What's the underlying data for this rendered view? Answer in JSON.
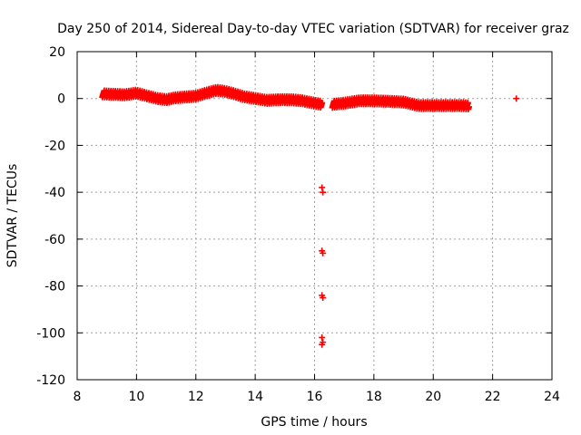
{
  "chart_data": {
    "type": "scatter",
    "title": "Day 250 of 2014, Sidereal Day-to-day VTEC variation (SDTVAR) for receiver graz",
    "xlabel": "GPS time / hours",
    "ylabel": "SDTVAR / TECUs",
    "xlim": [
      8,
      24
    ],
    "ylim": [
      -120,
      20
    ],
    "x_ticks": [
      8,
      10,
      12,
      14,
      16,
      18,
      20,
      22,
      24
    ],
    "y_ticks": [
      -120,
      -100,
      -80,
      -60,
      -40,
      -20,
      0,
      20
    ],
    "x_tick_labels": [
      "8",
      "10",
      "12",
      "14",
      "16",
      "18",
      "20",
      "22",
      "24"
    ],
    "y_tick_labels": [
      "-120",
      "-100",
      "-80",
      "-60",
      "-40",
      "-20",
      "0",
      "20"
    ],
    "grid": true,
    "marker": "plus",
    "color": "#ff0000",
    "series": [
      {
        "name": "SDTVAR",
        "trend": [
          {
            "x": 8.85,
            "y": 2.0
          },
          {
            "x": 9.2,
            "y": 1.8
          },
          {
            "x": 9.6,
            "y": 1.6
          },
          {
            "x": 10.0,
            "y": 2.3
          },
          {
            "x": 10.3,
            "y": 1.3
          },
          {
            "x": 10.7,
            "y": 0.0
          },
          {
            "x": 11.0,
            "y": -0.5
          },
          {
            "x": 11.3,
            "y": 0.3
          },
          {
            "x": 11.6,
            "y": 0.6
          },
          {
            "x": 12.0,
            "y": 1.0
          },
          {
            "x": 12.4,
            "y": 2.5
          },
          {
            "x": 12.7,
            "y": 3.5
          },
          {
            "x": 13.0,
            "y": 3.0
          },
          {
            "x": 13.3,
            "y": 2.0
          },
          {
            "x": 13.6,
            "y": 0.8
          },
          {
            "x": 14.0,
            "y": 0.0
          },
          {
            "x": 14.4,
            "y": -0.8
          },
          {
            "x": 14.8,
            "y": -0.5
          },
          {
            "x": 15.2,
            "y": -0.5
          },
          {
            "x": 15.6,
            "y": -1.0
          },
          {
            "x": 16.0,
            "y": -2.0
          },
          {
            "x": 16.25,
            "y": -2.5
          }
        ],
        "trend2": [
          {
            "x": 16.6,
            "y": -2.5
          },
          {
            "x": 17.0,
            "y": -2.0
          },
          {
            "x": 17.5,
            "y": -1.0
          },
          {
            "x": 18.0,
            "y": -1.0
          },
          {
            "x": 18.5,
            "y": -1.2
          },
          {
            "x": 19.0,
            "y": -1.5
          },
          {
            "x": 19.5,
            "y": -3.0
          },
          {
            "x": 20.0,
            "y": -3.0
          },
          {
            "x": 20.5,
            "y": -3.0
          },
          {
            "x": 21.0,
            "y": -3.0
          },
          {
            "x": 21.2,
            "y": -3.2
          }
        ],
        "outliers": [
          {
            "x": 16.25,
            "y": -38
          },
          {
            "x": 16.28,
            "y": -40
          },
          {
            "x": 16.25,
            "y": -65
          },
          {
            "x": 16.28,
            "y": -66
          },
          {
            "x": 16.25,
            "y": -84
          },
          {
            "x": 16.28,
            "y": -85
          },
          {
            "x": 16.25,
            "y": -102
          },
          {
            "x": 16.28,
            "y": -104
          },
          {
            "x": 16.25,
            "y": -105
          },
          {
            "x": 22.8,
            "y": 0
          }
        ]
      }
    ]
  }
}
